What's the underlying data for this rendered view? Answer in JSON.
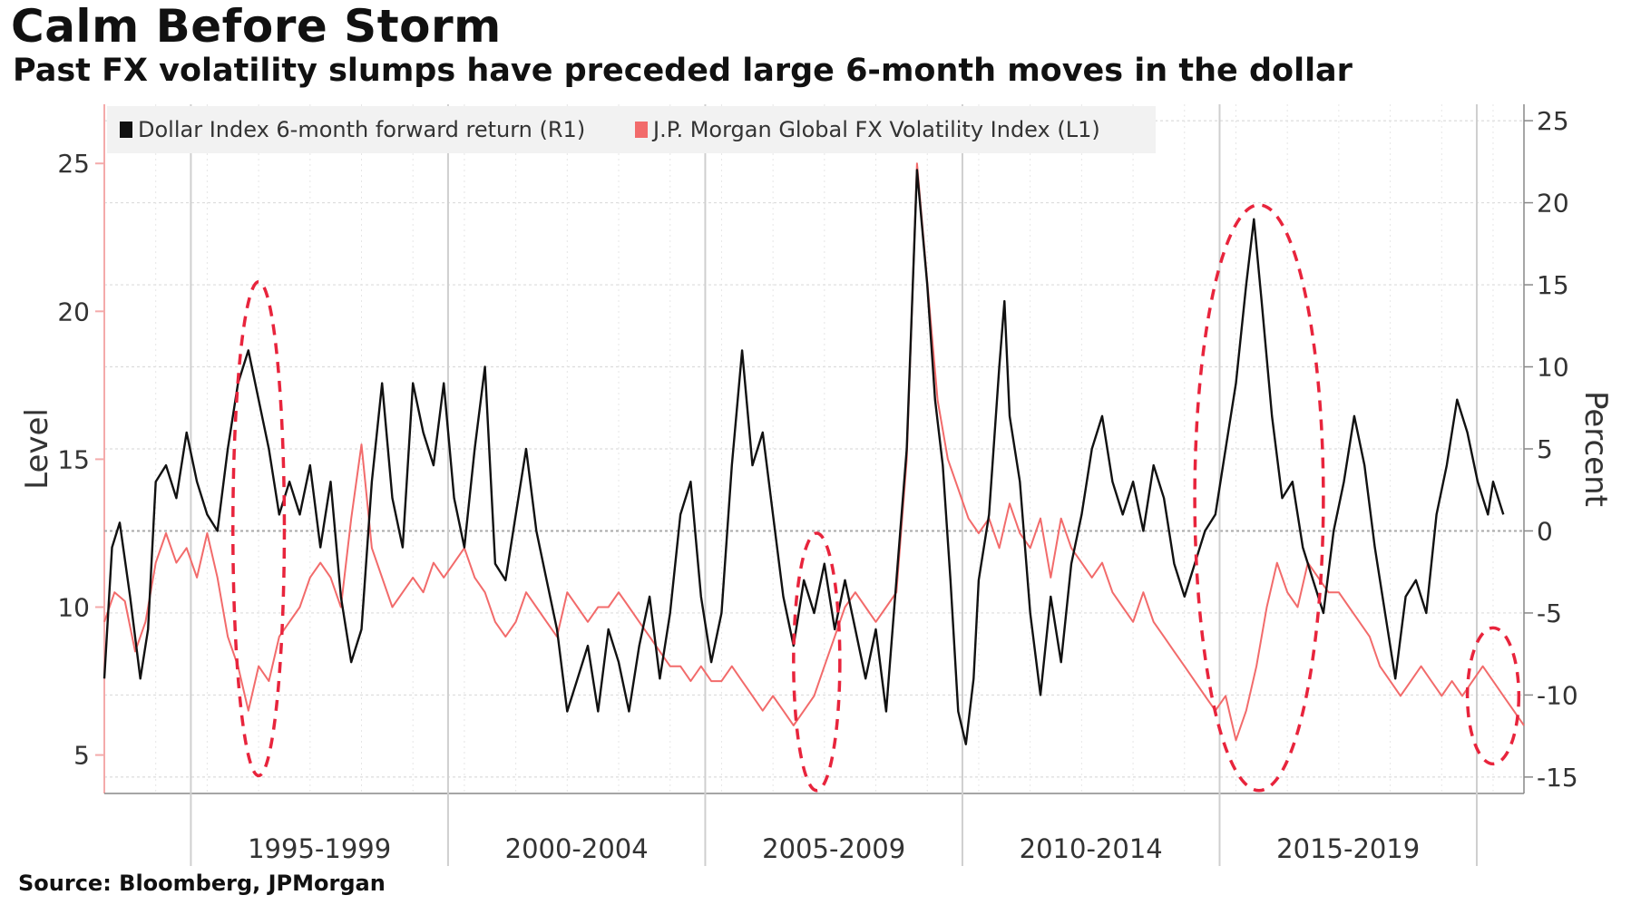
{
  "title": "Calm Before Storm",
  "subtitle": "Past FX volatility slumps have preceded large 6-month moves in the dollar",
  "source": "Source: Bloomberg, JPMorgan",
  "chart_data": {
    "type": "line",
    "x_categories": [
      "1995-1999",
      "2000-2004",
      "2005-2009",
      "2010-2014",
      "2015-2019"
    ],
    "x_range_years": [
      1993.0,
      2020.6
    ],
    "left_axis": {
      "label": "Level",
      "range": [
        3.7,
        27
      ],
      "ticks": [
        5,
        10,
        15,
        20,
        25
      ]
    },
    "right_axis": {
      "label": "Percent",
      "range": [
        -16,
        26
      ],
      "ticks": [
        -15,
        -10,
        -5,
        0,
        5,
        10,
        15,
        20,
        25
      ]
    },
    "legend": [
      {
        "name": "Dollar Index 6-month forward return (R1)",
        "color": "#111111"
      },
      {
        "name": "J.P. Morgan Global FX Volatility Index  (L1)",
        "color": "#f26b6b"
      }
    ],
    "series": [
      {
        "name": "Dollar Index 6-month forward return (R1)",
        "axis": "right",
        "color": "#111111",
        "points": [
          [
            1993.0,
            -9
          ],
          [
            1993.15,
            -1
          ],
          [
            1993.3,
            0.5
          ],
          [
            1993.5,
            -4
          ],
          [
            1993.7,
            -9
          ],
          [
            1993.85,
            -6
          ],
          [
            1994.0,
            3
          ],
          [
            1994.2,
            4
          ],
          [
            1994.4,
            2
          ],
          [
            1994.6,
            6
          ],
          [
            1994.8,
            3
          ],
          [
            1995.0,
            1
          ],
          [
            1995.2,
            0
          ],
          [
            1995.4,
            5
          ],
          [
            1995.6,
            9
          ],
          [
            1995.8,
            11
          ],
          [
            1996.0,
            8
          ],
          [
            1996.2,
            5
          ],
          [
            1996.4,
            1
          ],
          [
            1996.6,
            3
          ],
          [
            1996.8,
            1
          ],
          [
            1997.0,
            4
          ],
          [
            1997.2,
            -1
          ],
          [
            1997.4,
            3
          ],
          [
            1997.6,
            -4
          ],
          [
            1997.8,
            -8
          ],
          [
            1998.0,
            -6
          ],
          [
            1998.2,
            3
          ],
          [
            1998.4,
            9
          ],
          [
            1998.6,
            2
          ],
          [
            1998.8,
            -1
          ],
          [
            1999.0,
            9
          ],
          [
            1999.2,
            6
          ],
          [
            1999.4,
            4
          ],
          [
            1999.6,
            9
          ],
          [
            1999.8,
            2
          ],
          [
            2000.0,
            -1
          ],
          [
            2000.2,
            5
          ],
          [
            2000.4,
            10
          ],
          [
            2000.6,
            -2
          ],
          [
            2000.8,
            -3
          ],
          [
            2001.0,
            1
          ],
          [
            2001.2,
            5
          ],
          [
            2001.4,
            0
          ],
          [
            2001.6,
            -3
          ],
          [
            2001.8,
            -6
          ],
          [
            2002.0,
            -11
          ],
          [
            2002.2,
            -9
          ],
          [
            2002.4,
            -7
          ],
          [
            2002.6,
            -11
          ],
          [
            2002.8,
            -6
          ],
          [
            2003.0,
            -8
          ],
          [
            2003.2,
            -11
          ],
          [
            2003.4,
            -7
          ],
          [
            2003.6,
            -4
          ],
          [
            2003.8,
            -9
          ],
          [
            2004.0,
            -5
          ],
          [
            2004.2,
            1
          ],
          [
            2004.4,
            3
          ],
          [
            2004.6,
            -4
          ],
          [
            2004.8,
            -8
          ],
          [
            2005.0,
            -5
          ],
          [
            2005.2,
            4
          ],
          [
            2005.4,
            11
          ],
          [
            2005.6,
            4
          ],
          [
            2005.8,
            6
          ],
          [
            2006.0,
            1
          ],
          [
            2006.2,
            -4
          ],
          [
            2006.4,
            -7
          ],
          [
            2006.6,
            -3
          ],
          [
            2006.8,
            -5
          ],
          [
            2007.0,
            -2
          ],
          [
            2007.2,
            -6
          ],
          [
            2007.4,
            -3
          ],
          [
            2007.6,
            -6
          ],
          [
            2007.8,
            -9
          ],
          [
            2008.0,
            -6
          ],
          [
            2008.2,
            -11
          ],
          [
            2008.4,
            -3
          ],
          [
            2008.6,
            5
          ],
          [
            2008.8,
            22
          ],
          [
            2009.0,
            15
          ],
          [
            2009.15,
            8
          ],
          [
            2009.3,
            4
          ],
          [
            2009.45,
            -3
          ],
          [
            2009.6,
            -11
          ],
          [
            2009.75,
            -13
          ],
          [
            2009.9,
            -9
          ],
          [
            2010.0,
            -3
          ],
          [
            2010.2,
            1
          ],
          [
            2010.4,
            10
          ],
          [
            2010.5,
            14
          ],
          [
            2010.6,
            7
          ],
          [
            2010.8,
            3
          ],
          [
            2011.0,
            -5
          ],
          [
            2011.2,
            -10
          ],
          [
            2011.4,
            -4
          ],
          [
            2011.6,
            -8
          ],
          [
            2011.8,
            -2
          ],
          [
            2012.0,
            1
          ],
          [
            2012.2,
            5
          ],
          [
            2012.4,
            7
          ],
          [
            2012.6,
            3
          ],
          [
            2012.8,
            1
          ],
          [
            2013.0,
            3
          ],
          [
            2013.2,
            0
          ],
          [
            2013.4,
            4
          ],
          [
            2013.6,
            2
          ],
          [
            2013.8,
            -2
          ],
          [
            2014.0,
            -4
          ],
          [
            2014.2,
            -2
          ],
          [
            2014.4,
            0
          ],
          [
            2014.6,
            1
          ],
          [
            2014.8,
            5
          ],
          [
            2015.0,
            9
          ],
          [
            2015.2,
            15
          ],
          [
            2015.35,
            19
          ],
          [
            2015.5,
            14
          ],
          [
            2015.7,
            7
          ],
          [
            2015.9,
            2
          ],
          [
            2016.1,
            3
          ],
          [
            2016.3,
            -1
          ],
          [
            2016.5,
            -3
          ],
          [
            2016.7,
            -5
          ],
          [
            2016.9,
            0
          ],
          [
            2017.1,
            3
          ],
          [
            2017.3,
            7
          ],
          [
            2017.5,
            4
          ],
          [
            2017.7,
            -1
          ],
          [
            2017.9,
            -5
          ],
          [
            2018.1,
            -9
          ],
          [
            2018.3,
            -4
          ],
          [
            2018.5,
            -3
          ],
          [
            2018.7,
            -5
          ],
          [
            2018.9,
            1
          ],
          [
            2019.1,
            4
          ],
          [
            2019.3,
            8
          ],
          [
            2019.5,
            6
          ],
          [
            2019.7,
            3
          ],
          [
            2019.9,
            1
          ],
          [
            2020.0,
            3
          ],
          [
            2020.1,
            2
          ],
          [
            2020.2,
            1
          ]
        ]
      },
      {
        "name": "J.P. Morgan Global FX Volatility Index  (L1)",
        "axis": "left",
        "color": "#f26b6b",
        "points": [
          [
            1993.0,
            9.5
          ],
          [
            1993.2,
            10.5
          ],
          [
            1993.4,
            10.2
          ],
          [
            1993.6,
            8.5
          ],
          [
            1993.8,
            9.5
          ],
          [
            1994.0,
            11.5
          ],
          [
            1994.2,
            12.5
          ],
          [
            1994.4,
            11.5
          ],
          [
            1994.6,
            12.0
          ],
          [
            1994.8,
            11.0
          ],
          [
            1995.0,
            12.5
          ],
          [
            1995.2,
            11.0
          ],
          [
            1995.4,
            9.0
          ],
          [
            1995.6,
            8.0
          ],
          [
            1995.8,
            6.5
          ],
          [
            1996.0,
            8.0
          ],
          [
            1996.2,
            7.5
          ],
          [
            1996.4,
            9.0
          ],
          [
            1996.6,
            9.5
          ],
          [
            1996.8,
            10.0
          ],
          [
            1997.0,
            11.0
          ],
          [
            1997.2,
            11.5
          ],
          [
            1997.4,
            11.0
          ],
          [
            1997.6,
            10.0
          ],
          [
            1997.8,
            13.0
          ],
          [
            1998.0,
            15.5
          ],
          [
            1998.2,
            12.0
          ],
          [
            1998.4,
            11.0
          ],
          [
            1998.6,
            10.0
          ],
          [
            1998.8,
            10.5
          ],
          [
            1999.0,
            11.0
          ],
          [
            1999.2,
            10.5
          ],
          [
            1999.4,
            11.5
          ],
          [
            1999.6,
            11.0
          ],
          [
            1999.8,
            11.5
          ],
          [
            2000.0,
            12.0
          ],
          [
            2000.2,
            11.0
          ],
          [
            2000.4,
            10.5
          ],
          [
            2000.6,
            9.5
          ],
          [
            2000.8,
            9.0
          ],
          [
            2001.0,
            9.5
          ],
          [
            2001.2,
            10.5
          ],
          [
            2001.4,
            10.0
          ],
          [
            2001.6,
            9.5
          ],
          [
            2001.8,
            9.0
          ],
          [
            2002.0,
            10.5
          ],
          [
            2002.2,
            10.0
          ],
          [
            2002.4,
            9.5
          ],
          [
            2002.6,
            10.0
          ],
          [
            2002.8,
            10.0
          ],
          [
            2003.0,
            10.5
          ],
          [
            2003.2,
            10.0
          ],
          [
            2003.4,
            9.5
          ],
          [
            2003.6,
            9.0
          ],
          [
            2003.8,
            8.5
          ],
          [
            2004.0,
            8.0
          ],
          [
            2004.2,
            8.0
          ],
          [
            2004.4,
            7.5
          ],
          [
            2004.6,
            8.0
          ],
          [
            2004.8,
            7.5
          ],
          [
            2005.0,
            7.5
          ],
          [
            2005.2,
            8.0
          ],
          [
            2005.4,
            7.5
          ],
          [
            2005.6,
            7.0
          ],
          [
            2005.8,
            6.5
          ],
          [
            2006.0,
            7.0
          ],
          [
            2006.2,
            6.5
          ],
          [
            2006.4,
            6.0
          ],
          [
            2006.6,
            6.5
          ],
          [
            2006.8,
            7.0
          ],
          [
            2007.0,
            8.0
          ],
          [
            2007.2,
            9.0
          ],
          [
            2007.4,
            10.0
          ],
          [
            2007.6,
            10.5
          ],
          [
            2007.8,
            10.0
          ],
          [
            2008.0,
            9.5
          ],
          [
            2008.2,
            10.0
          ],
          [
            2008.4,
            10.5
          ],
          [
            2008.6,
            15.0
          ],
          [
            2008.8,
            25.0
          ],
          [
            2009.0,
            21.0
          ],
          [
            2009.2,
            17.0
          ],
          [
            2009.4,
            15.0
          ],
          [
            2009.6,
            14.0
          ],
          [
            2009.8,
            13.0
          ],
          [
            2010.0,
            12.5
          ],
          [
            2010.2,
            13.0
          ],
          [
            2010.4,
            12.0
          ],
          [
            2010.6,
            13.5
          ],
          [
            2010.8,
            12.5
          ],
          [
            2011.0,
            12.0
          ],
          [
            2011.2,
            13.0
          ],
          [
            2011.4,
            11.0
          ],
          [
            2011.6,
            13.0
          ],
          [
            2011.8,
            12.0
          ],
          [
            2012.0,
            11.5
          ],
          [
            2012.2,
            11.0
          ],
          [
            2012.4,
            11.5
          ],
          [
            2012.6,
            10.5
          ],
          [
            2012.8,
            10.0
          ],
          [
            2013.0,
            9.5
          ],
          [
            2013.2,
            10.5
          ],
          [
            2013.4,
            9.5
          ],
          [
            2013.6,
            9.0
          ],
          [
            2013.8,
            8.5
          ],
          [
            2014.0,
            8.0
          ],
          [
            2014.2,
            7.5
          ],
          [
            2014.4,
            7.0
          ],
          [
            2014.6,
            6.5
          ],
          [
            2014.8,
            7.0
          ],
          [
            2015.0,
            5.5
          ],
          [
            2015.2,
            6.5
          ],
          [
            2015.4,
            8.0
          ],
          [
            2015.6,
            10.0
          ],
          [
            2015.8,
            11.5
          ],
          [
            2016.0,
            10.5
          ],
          [
            2016.2,
            10.0
          ],
          [
            2016.4,
            11.5
          ],
          [
            2016.6,
            11.0
          ],
          [
            2016.8,
            10.5
          ],
          [
            2017.0,
            10.5
          ],
          [
            2017.2,
            10.0
          ],
          [
            2017.4,
            9.5
          ],
          [
            2017.6,
            9.0
          ],
          [
            2017.8,
            8.0
          ],
          [
            2018.0,
            7.5
          ],
          [
            2018.2,
            7.0
          ],
          [
            2018.4,
            7.5
          ],
          [
            2018.6,
            8.0
          ],
          [
            2018.8,
            7.5
          ],
          [
            2019.0,
            7.0
          ],
          [
            2019.2,
            7.5
          ],
          [
            2019.4,
            7.0
          ],
          [
            2019.6,
            7.5
          ],
          [
            2019.8,
            8.0
          ],
          [
            2020.0,
            7.5
          ],
          [
            2020.2,
            7.0
          ],
          [
            2020.4,
            6.5
          ],
          [
            2020.6,
            6.0
          ]
        ]
      }
    ],
    "highlight_ellipses": [
      {
        "x_start": 1995.5,
        "x_end": 1996.5,
        "level_low": 4.3,
        "level_high": 21.0
      },
      {
        "x_start": 2006.4,
        "x_end": 2007.3,
        "level_low": 3.8,
        "level_high": 12.5
      },
      {
        "x_start": 2014.2,
        "x_end": 2016.7,
        "level_low": 3.8,
        "level_high": 23.6
      },
      {
        "x_start": 2019.5,
        "x_end": 2020.5,
        "level_low": 4.7,
        "level_high": 9.3
      }
    ]
  }
}
